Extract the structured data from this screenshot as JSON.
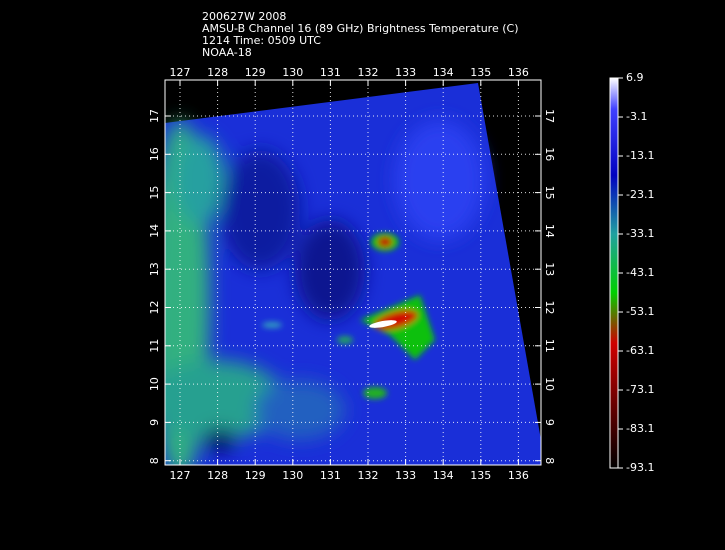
{
  "title_lines": [
    "200627W 2008",
    "AMSU-B Channel 16 (89 GHz) Brightness Temperature (C)",
    "1214 Time: 0509 UTC",
    "NOAA-18"
  ],
  "map": {
    "lon_labels": [
      127,
      128,
      129,
      130,
      131,
      132,
      133,
      134,
      135,
      136
    ],
    "lat_labels": [
      17,
      16,
      15,
      14,
      13,
      12,
      11,
      10,
      9,
      8
    ],
    "colorbar_labels": [
      6.9,
      -3.1,
      -13.1,
      -23.1,
      -33.1,
      -43.1,
      -53.1,
      -63.1,
      -73.1,
      -83.1,
      -93.1
    ]
  }
}
